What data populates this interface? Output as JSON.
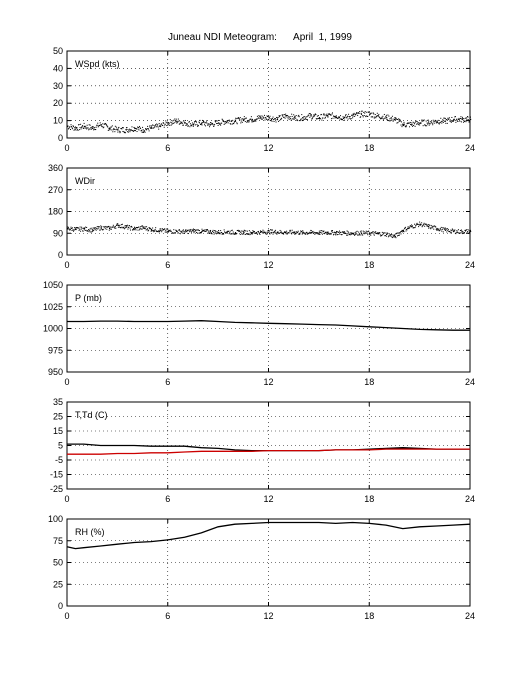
{
  "title": "Juneau NDI Meteogram:      April  1, 1999",
  "chart_data": [
    {
      "type": "scatter",
      "label": "WSpd (kts)",
      "x_range": [
        0,
        24
      ],
      "x_ticks": [
        0,
        6,
        12,
        18,
        24
      ],
      "ylim": [
        0,
        50
      ],
      "y_ticks": [
        0,
        10,
        20,
        30,
        40,
        50
      ],
      "grid": true,
      "series": [
        {
          "style": "dots",
          "color": "#000000",
          "x": [
            0,
            0.5,
            1,
            1.5,
            2,
            2.5,
            3,
            3.5,
            4,
            4.5,
            5,
            5.5,
            6,
            6.5,
            7,
            7.5,
            8,
            8.5,
            9,
            9.5,
            10,
            10.5,
            11,
            11.5,
            12,
            12.5,
            13,
            13.5,
            14,
            14.5,
            15,
            15.5,
            16,
            16.5,
            17,
            17.5,
            18,
            18.5,
            19,
            19.5,
            20,
            20.5,
            21,
            21.5,
            22,
            22.5,
            23,
            23.5,
            24
          ],
          "y": [
            7,
            6,
            7,
            6,
            8,
            6,
            5,
            5,
            6,
            5,
            6,
            7,
            9,
            10,
            9,
            8,
            9,
            8,
            9,
            10,
            10,
            11,
            11,
            12,
            12,
            11,
            13,
            12,
            12,
            13,
            12,
            13,
            13,
            12,
            13,
            14,
            14,
            13,
            12,
            11,
            8,
            8,
            9,
            9,
            10,
            10,
            11,
            11,
            11
          ]
        }
      ]
    },
    {
      "type": "scatter",
      "label": "WDir",
      "x_range": [
        0,
        24
      ],
      "x_ticks": [
        0,
        6,
        12,
        18,
        24
      ],
      "ylim": [
        0,
        360
      ],
      "y_ticks": [
        0,
        90,
        180,
        270,
        360
      ],
      "grid": true,
      "series": [
        {
          "style": "dots",
          "color": "#000000",
          "x": [
            0,
            0.5,
            1,
            1.5,
            2,
            2.5,
            3,
            3.5,
            4,
            4.5,
            5,
            5.5,
            6,
            6.5,
            7,
            7.5,
            8,
            8.5,
            9,
            9.5,
            10,
            10.5,
            11,
            11.5,
            12,
            12.5,
            13,
            13.5,
            14,
            14.5,
            15,
            15.5,
            16,
            16.5,
            17,
            17.5,
            18,
            18.5,
            19,
            19.5,
            20,
            20.5,
            21,
            21.5,
            22,
            22.5,
            23,
            23.5,
            24
          ],
          "y": [
            112,
            108,
            110,
            105,
            115,
            112,
            125,
            118,
            110,
            115,
            108,
            105,
            100,
            100,
            98,
            102,
            100,
            98,
            96,
            98,
            95,
            96,
            95,
            96,
            98,
            97,
            95,
            96,
            94,
            95,
            94,
            95,
            94,
            93,
            92,
            93,
            92,
            90,
            88,
            78,
            105,
            120,
            130,
            120,
            112,
            105,
            100,
            98,
            100
          ]
        }
      ]
    },
    {
      "type": "line",
      "label": "P (mb)",
      "x_range": [
        0,
        24
      ],
      "x_ticks": [
        0,
        6,
        12,
        18,
        24
      ],
      "ylim": [
        950,
        1050
      ],
      "y_ticks": [
        950,
        975,
        1000,
        1025,
        1050
      ],
      "grid": true,
      "series": [
        {
          "color": "#000000",
          "x": [
            0,
            1,
            2,
            3,
            4,
            5,
            6,
            7,
            8,
            9,
            10,
            11,
            12,
            13,
            14,
            15,
            16,
            17,
            18,
            19,
            20,
            21,
            22,
            23,
            24
          ],
          "y": [
            1008,
            1008,
            1008.5,
            1008.5,
            1008,
            1008,
            1008,
            1008.5,
            1009,
            1008,
            1007,
            1006.5,
            1006,
            1005.5,
            1005,
            1004.5,
            1004,
            1003,
            1002,
            1001,
            1000,
            999,
            998.5,
            998,
            998
          ]
        }
      ]
    },
    {
      "type": "line",
      "label": "T,Td (C)",
      "x_range": [
        0,
        24
      ],
      "x_ticks": [
        0,
        6,
        12,
        18,
        24
      ],
      "ylim": [
        -25,
        35
      ],
      "y_ticks": [
        -25,
        -15,
        -5,
        5,
        15,
        25,
        35
      ],
      "grid": true,
      "series": [
        {
          "color": "#000000",
          "x": [
            0,
            1,
            2,
            3,
            4,
            5,
            6,
            7,
            8,
            9,
            10,
            11,
            12,
            13,
            14,
            15,
            16,
            17,
            18,
            19,
            20,
            21,
            22,
            23,
            24
          ],
          "y": [
            6,
            6,
            5,
            5,
            5,
            4.5,
            4.5,
            4.5,
            3.5,
            3,
            2,
            1.5,
            1.5,
            1.5,
            1.5,
            1.5,
            2,
            2,
            2.5,
            3,
            3.5,
            3,
            2.5,
            2.5,
            2.5
          ]
        },
        {
          "color": "#cc0000",
          "x": [
            0,
            1,
            2,
            3,
            4,
            5,
            6,
            7,
            8,
            9,
            10,
            11,
            12,
            13,
            14,
            15,
            16,
            17,
            18,
            19,
            20,
            21,
            22,
            23,
            24
          ],
          "y": [
            -1,
            -1,
            -1,
            -0.5,
            -0.5,
            0,
            0,
            0.5,
            1,
            1,
            1,
            1,
            1.5,
            1.5,
            1.5,
            1.5,
            2,
            2,
            2,
            2.5,
            2.5,
            2.5,
            2.5,
            2.5,
            2.5
          ]
        }
      ]
    },
    {
      "type": "line",
      "label": "RH (%)",
      "x_range": [
        0,
        24
      ],
      "x_ticks": [
        0,
        6,
        12,
        18,
        24
      ],
      "ylim": [
        0,
        100
      ],
      "y_ticks": [
        0,
        25,
        50,
        75,
        100
      ],
      "grid": true,
      "series": [
        {
          "color": "#000000",
          "x": [
            0,
            0.5,
            1,
            2,
            3,
            4,
            5,
            6,
            7,
            8,
            9,
            10,
            11,
            12,
            13,
            14,
            15,
            16,
            17,
            18,
            19,
            20,
            21,
            22,
            23,
            24
          ],
          "y": [
            68,
            66,
            67,
            69,
            71,
            73,
            74,
            76,
            79,
            84,
            91,
            94,
            95,
            96,
            96,
            96,
            96,
            95,
            96,
            95,
            93,
            89,
            91,
            92,
            93,
            94
          ]
        }
      ]
    }
  ]
}
